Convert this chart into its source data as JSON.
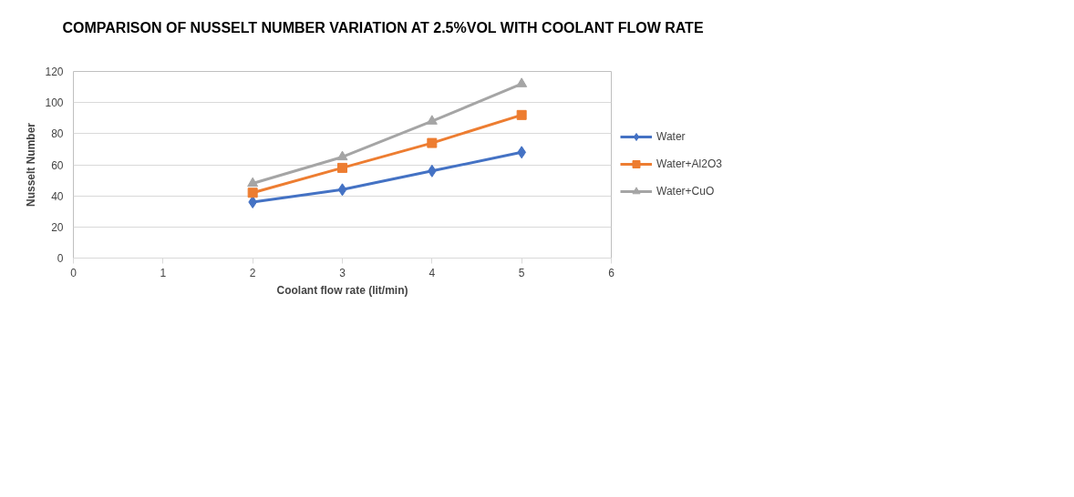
{
  "chart_data": {
    "type": "line",
    "title": "COMPARISON OF NUSSELT NUMBER VARIATION AT 2.5%VOL WITH COOLANT FLOW RATE",
    "xlabel": "Coolant flow rate (lit/min)",
    "ylabel": "Nusselt Number",
    "x": [
      2,
      3,
      4,
      5
    ],
    "series": [
      {
        "name": "Water",
        "color": "#4472c4",
        "marker": "diamond",
        "values": [
          36,
          44,
          56,
          68
        ]
      },
      {
        "name": "Water+Al2O3",
        "color": "#ed7d31",
        "marker": "square",
        "values": [
          42,
          58,
          74,
          92
        ]
      },
      {
        "name": "Water+CuO",
        "color": "#a5a5a5",
        "marker": "triangle",
        "values": [
          48,
          65,
          88,
          112
        ]
      }
    ],
    "xlim": [
      0,
      6
    ],
    "xticks": [
      0,
      1,
      2,
      3,
      4,
      5,
      6
    ],
    "ylim": [
      0,
      120
    ],
    "yticks": [
      0,
      20,
      40,
      60,
      80,
      100,
      120
    ],
    "grid": "y",
    "legend": "right",
    "line_style": "solid"
  }
}
